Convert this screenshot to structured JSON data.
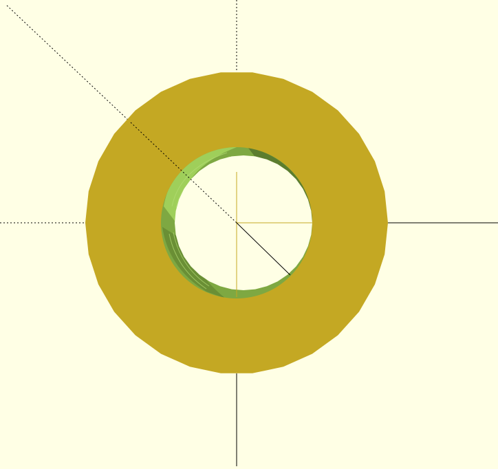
{
  "viewer": {
    "background_color": "#ffffe5",
    "model_face_color": "#c4a823",
    "model_inner_light_color": "#9fcf5a",
    "model_inner_mid_color": "#7ea842",
    "model_inner_dark_color": "#5c7d2e",
    "axis_color": "#000000",
    "inner_axis_color": "#c4a823",
    "projection": "orthographic",
    "view": "top"
  }
}
